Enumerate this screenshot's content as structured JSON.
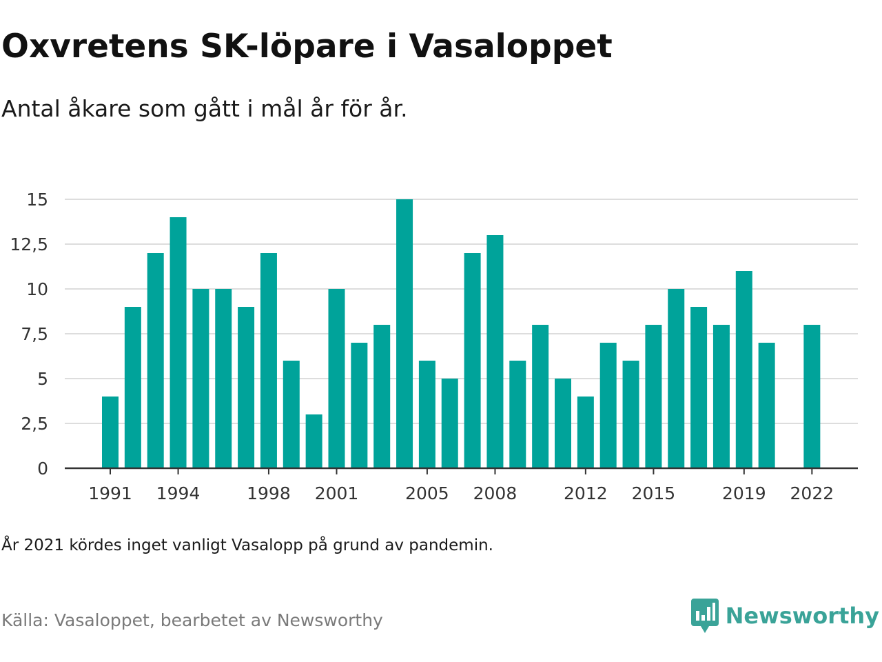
{
  "header": {
    "title": "Oxvretens SK-löpare i Vasaloppet",
    "subtitle": "Antal åkare som gått i mål år för år."
  },
  "footer": {
    "note": "År 2021 kördes inget vanligt Vasalopp på grund av pandemin.",
    "source": "Källa: Vasaloppet, bearbetet av Newsworthy",
    "brand": "Newsworthy"
  },
  "colors": {
    "bar": "#00a39a",
    "grid": "#dddddd",
    "axis": "#333333",
    "brand": "#3aa398"
  },
  "icons": {
    "brand_logo": "newsworthy-logo-icon"
  },
  "chart_data": {
    "type": "bar",
    "title": "Oxvretens SK-löpare i Vasaloppet",
    "subtitle": "Antal åkare som gått i mål år för år.",
    "xlabel": "",
    "ylabel": "",
    "ylim": [
      0,
      15
    ],
    "grid": true,
    "legend": "none",
    "categories": [
      1991,
      1992,
      1993,
      1994,
      1995,
      1996,
      1997,
      1998,
      1999,
      2000,
      2001,
      2002,
      2003,
      2004,
      2005,
      2006,
      2007,
      2008,
      2009,
      2010,
      2011,
      2012,
      2013,
      2014,
      2015,
      2016,
      2017,
      2018,
      2019,
      2020,
      2021,
      2022
    ],
    "values": [
      4,
      9,
      12,
      14,
      10,
      10,
      9,
      12,
      6,
      3,
      10,
      7,
      8,
      15,
      6,
      5,
      12,
      13,
      6,
      8,
      5,
      4,
      7,
      6,
      8,
      10,
      9,
      8,
      11,
      7,
      null,
      8
    ],
    "y_ticks": [
      0,
      2.5,
      5,
      7.5,
      10,
      12.5,
      15
    ],
    "y_tick_labels": [
      "0",
      "2,5",
      "5",
      "7,5",
      "10",
      "12,5",
      "15"
    ],
    "x_tick_labels": [
      "1991",
      "1994",
      "1998",
      "2001",
      "2005",
      "2008",
      "2012",
      "2015",
      "2019",
      "2022"
    ]
  }
}
